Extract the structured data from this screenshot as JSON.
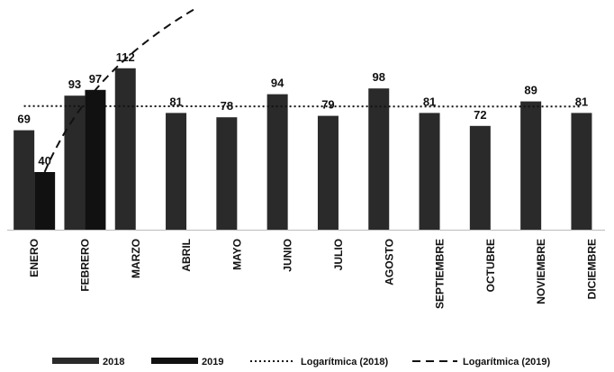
{
  "chart_data": {
    "type": "bar",
    "categories": [
      "ENERO",
      "FEBRERO",
      "MARZO",
      "ABRIL",
      "MAYO",
      "JUNIO",
      "JULIO",
      "AGOSTO",
      "SEPTIEMBRE",
      "OCTUBRE",
      "NOVIEMBRE",
      "DICIEMBRE"
    ],
    "series": [
      {
        "name": "2018",
        "color": "#2a2a2a",
        "values": [
          69,
          93,
          112,
          81,
          78,
          94,
          79,
          98,
          81,
          72,
          89,
          81
        ],
        "trendline": {
          "name": "Logarítmica (2018)",
          "type": "logarithmic",
          "dash": "2,3"
        }
      },
      {
        "name": "2019",
        "color": "#111111",
        "values": [
          40,
          97,
          null,
          null,
          null,
          null,
          null,
          null,
          null,
          null,
          null,
          null
        ],
        "trendline": {
          "name": "Logarítmica (2019)",
          "type": "logarithmic",
          "dash": "9,6"
        }
      }
    ],
    "grid": false
  }
}
